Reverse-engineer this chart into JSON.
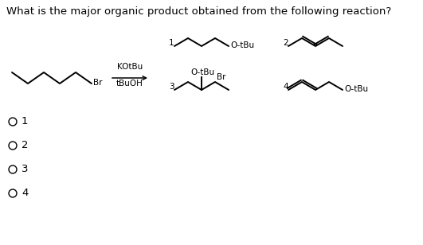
{
  "title": "What is the major organic product obtained from the following reaction?",
  "title_fontsize": 9.5,
  "background_color": "#ffffff",
  "text_color": "#000000",
  "reagent_line1": "KOtBu",
  "reagent_line2": "tBuOH",
  "label_Br": "Br",
  "label_OtBu": "O-tBu",
  "choices": [
    "1",
    "2",
    "3",
    "4"
  ]
}
